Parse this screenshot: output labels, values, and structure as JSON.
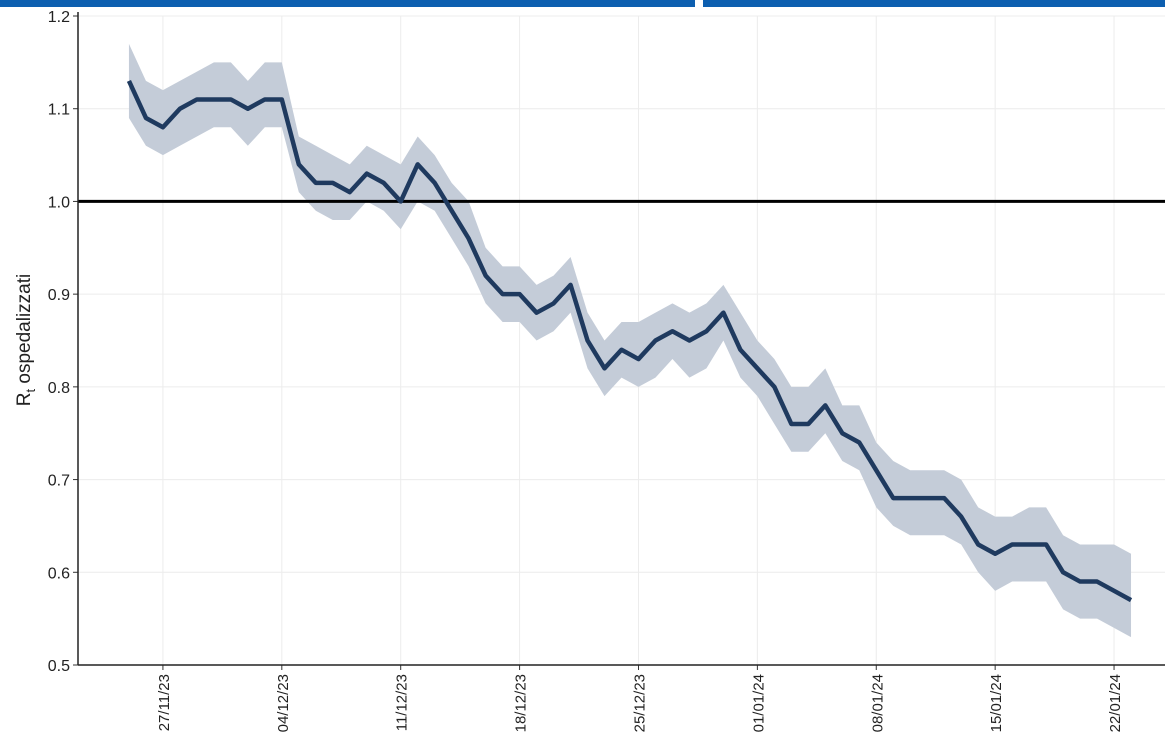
{
  "chart_data": {
    "type": "line",
    "ylabel": [
      "R",
      "t",
      " ospedalizzati"
    ],
    "x": [
      "25/11/23",
      "26/11/23",
      "27/11/23",
      "28/11/23",
      "29/11/23",
      "30/11/23",
      "01/12/23",
      "02/12/23",
      "03/12/23",
      "04/12/23",
      "05/12/23",
      "06/12/23",
      "07/12/23",
      "08/12/23",
      "09/12/23",
      "10/12/23",
      "11/12/23",
      "12/12/23",
      "13/12/23",
      "14/12/23",
      "15/12/23",
      "16/12/23",
      "17/12/23",
      "18/12/23",
      "19/12/23",
      "20/12/23",
      "21/12/23",
      "22/12/23",
      "23/12/23",
      "24/12/23",
      "25/12/23",
      "26/12/23",
      "27/12/23",
      "28/12/23",
      "29/12/23",
      "30/12/23",
      "31/12/23",
      "01/01/24",
      "02/01/24",
      "03/01/24",
      "04/01/24",
      "05/01/24",
      "06/01/24",
      "07/01/24",
      "08/01/24",
      "09/01/24",
      "10/01/24",
      "11/01/24",
      "12/01/24",
      "13/01/24",
      "14/01/24",
      "15/01/24",
      "16/01/24",
      "17/01/24",
      "18/01/24",
      "19/01/24",
      "20/01/24",
      "21/01/24",
      "22/01/24",
      "23/01/24"
    ],
    "values": [
      1.13,
      1.09,
      1.08,
      1.1,
      1.11,
      1.11,
      1.11,
      1.1,
      1.11,
      1.11,
      1.04,
      1.02,
      1.02,
      1.01,
      1.03,
      1.02,
      1.0,
      1.04,
      1.02,
      0.99,
      0.96,
      0.92,
      0.9,
      0.9,
      0.88,
      0.89,
      0.91,
      0.85,
      0.82,
      0.84,
      0.83,
      0.85,
      0.86,
      0.85,
      0.86,
      0.88,
      0.84,
      0.82,
      0.8,
      0.76,
      0.76,
      0.78,
      0.75,
      0.74,
      0.71,
      0.68,
      0.68,
      0.68,
      0.68,
      0.66,
      0.63,
      0.62,
      0.63,
      0.63,
      0.63,
      0.6,
      0.59,
      0.59,
      0.58,
      0.57
    ],
    "upper": [
      1.17,
      1.13,
      1.12,
      1.13,
      1.14,
      1.15,
      1.15,
      1.13,
      1.15,
      1.15,
      1.07,
      1.06,
      1.05,
      1.04,
      1.06,
      1.05,
      1.04,
      1.07,
      1.05,
      1.02,
      1.0,
      0.95,
      0.93,
      0.93,
      0.91,
      0.92,
      0.94,
      0.88,
      0.85,
      0.87,
      0.87,
      0.88,
      0.89,
      0.88,
      0.89,
      0.91,
      0.88,
      0.85,
      0.83,
      0.8,
      0.8,
      0.82,
      0.78,
      0.78,
      0.74,
      0.72,
      0.71,
      0.71,
      0.71,
      0.7,
      0.67,
      0.66,
      0.66,
      0.67,
      0.67,
      0.64,
      0.63,
      0.63,
      0.63,
      0.62
    ],
    "lower": [
      1.09,
      1.06,
      1.05,
      1.06,
      1.07,
      1.08,
      1.08,
      1.06,
      1.08,
      1.08,
      1.01,
      0.99,
      0.98,
      0.98,
      1.0,
      0.99,
      0.97,
      1.0,
      0.99,
      0.96,
      0.93,
      0.89,
      0.87,
      0.87,
      0.85,
      0.86,
      0.88,
      0.82,
      0.79,
      0.81,
      0.8,
      0.81,
      0.83,
      0.81,
      0.82,
      0.85,
      0.81,
      0.79,
      0.76,
      0.73,
      0.73,
      0.75,
      0.72,
      0.71,
      0.67,
      0.65,
      0.64,
      0.64,
      0.64,
      0.63,
      0.6,
      0.58,
      0.59,
      0.59,
      0.59,
      0.56,
      0.55,
      0.55,
      0.54,
      0.53
    ],
    "color": "#1f3a5f",
    "band_color": "#c4ccd8",
    "reference_line": 1,
    "xlim": [
      "22/11/23",
      "25/01/24"
    ],
    "xticks": [
      "27/11/23",
      "04/12/23",
      "11/12/23",
      "18/12/23",
      "25/12/23",
      "01/01/24",
      "08/01/24",
      "15/01/24",
      "22/01/24"
    ],
    "ylim": [
      0.5,
      1.2
    ],
    "yticks": [
      0.5,
      0.6,
      0.7,
      0.8,
      0.9,
      {
        "value": 1,
        "label": "1.0"
      },
      1.1,
      1.2
    ],
    "grid": true
  }
}
